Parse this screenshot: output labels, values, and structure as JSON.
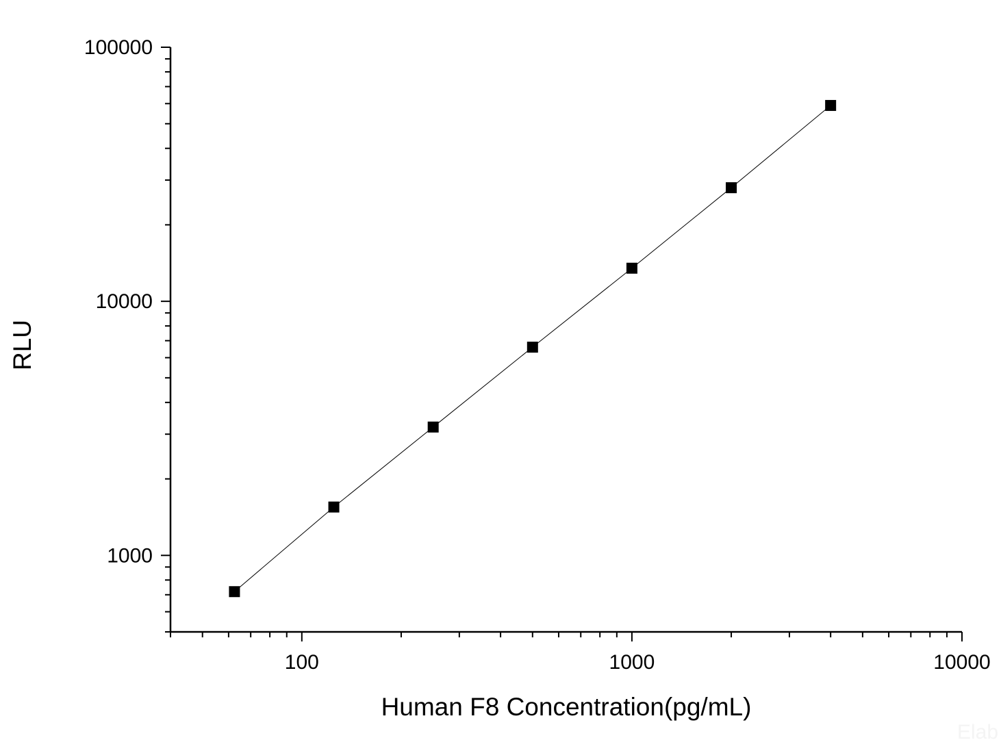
{
  "chart_data": {
    "type": "scatter",
    "xlabel": "Human F8 Concentration(pg/mL)",
    "ylabel": "RLU",
    "x_scale": "log",
    "y_scale": "log",
    "xlim": [
      40,
      10000
    ],
    "ylim": [
      500,
      100000
    ],
    "x_ticks": [
      "100",
      "1000",
      "10000"
    ],
    "y_ticks": [
      "1000",
      "10000",
      "100000"
    ],
    "grid": false,
    "legend": "none",
    "marker": "square",
    "color": "#000000",
    "series": [
      {
        "x": [
          62.5,
          125,
          250,
          500,
          1000,
          2000,
          4000
        ],
        "y": [
          720,
          1550,
          3200,
          6600,
          13500,
          28000,
          59000
        ]
      }
    ],
    "watermark": "Elab"
  }
}
